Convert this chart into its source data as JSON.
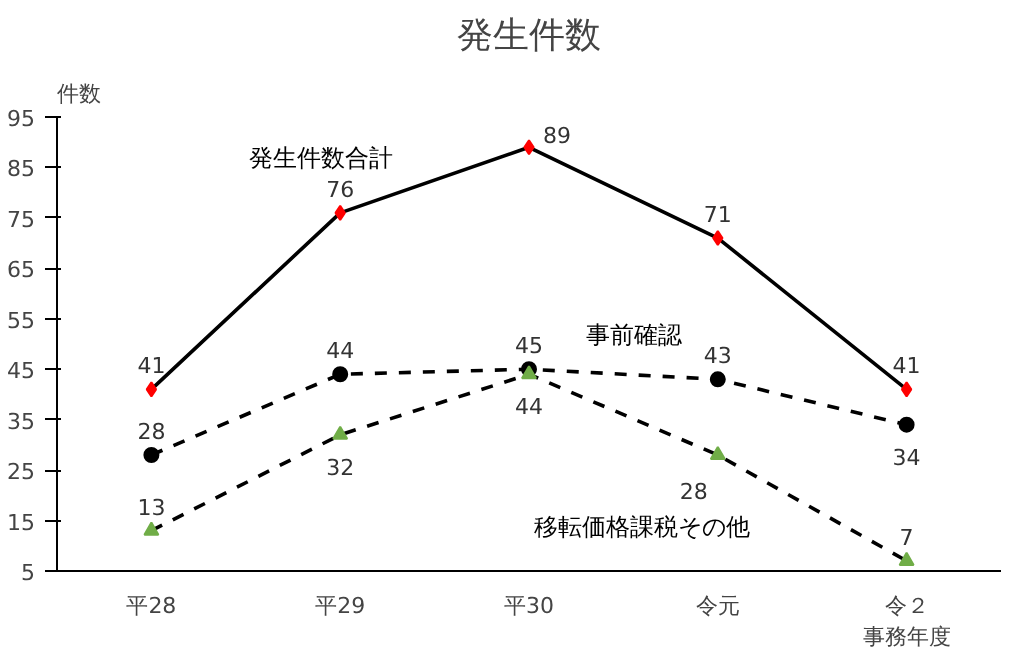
{
  "chart_data": {
    "type": "line",
    "title": "発生件数",
    "ylabel": "件数",
    "categories": [
      "平28",
      "平29",
      "平30",
      "令元",
      "令２事務年度"
    ],
    "ylim": [
      5,
      95
    ],
    "yticks": [
      5,
      15,
      25,
      35,
      45,
      55,
      65,
      75,
      85,
      95
    ],
    "grid": false,
    "data_labels": true,
    "series": [
      {
        "name": "発生件数合計",
        "color": "#000000",
        "colors": [
          "#ff0000",
          "#ff0000",
          "#ff0000",
          "#ff0000",
          "#ff0000"
        ],
        "marker": "diamond",
        "line_style": "solid",
        "values": [
          41,
          76,
          89,
          71,
          41
        ]
      },
      {
        "name": "事前確認",
        "color": "#000000",
        "colors": [
          "#000000",
          "#000000",
          "#000000",
          "#000000",
          "#000000"
        ],
        "marker": "circle",
        "line_style": "dashed",
        "values": [
          28,
          44,
          45,
          43,
          34
        ]
      },
      {
        "name": "移転価格課税その他",
        "color": "#000000",
        "colors": [
          "#70ad47",
          "#70ad47",
          "#70ad47",
          "#70ad47",
          "#70ad47"
        ],
        "marker": "triangle",
        "line_style": "dashed",
        "values": [
          13,
          32,
          44,
          28,
          7
        ]
      }
    ]
  }
}
